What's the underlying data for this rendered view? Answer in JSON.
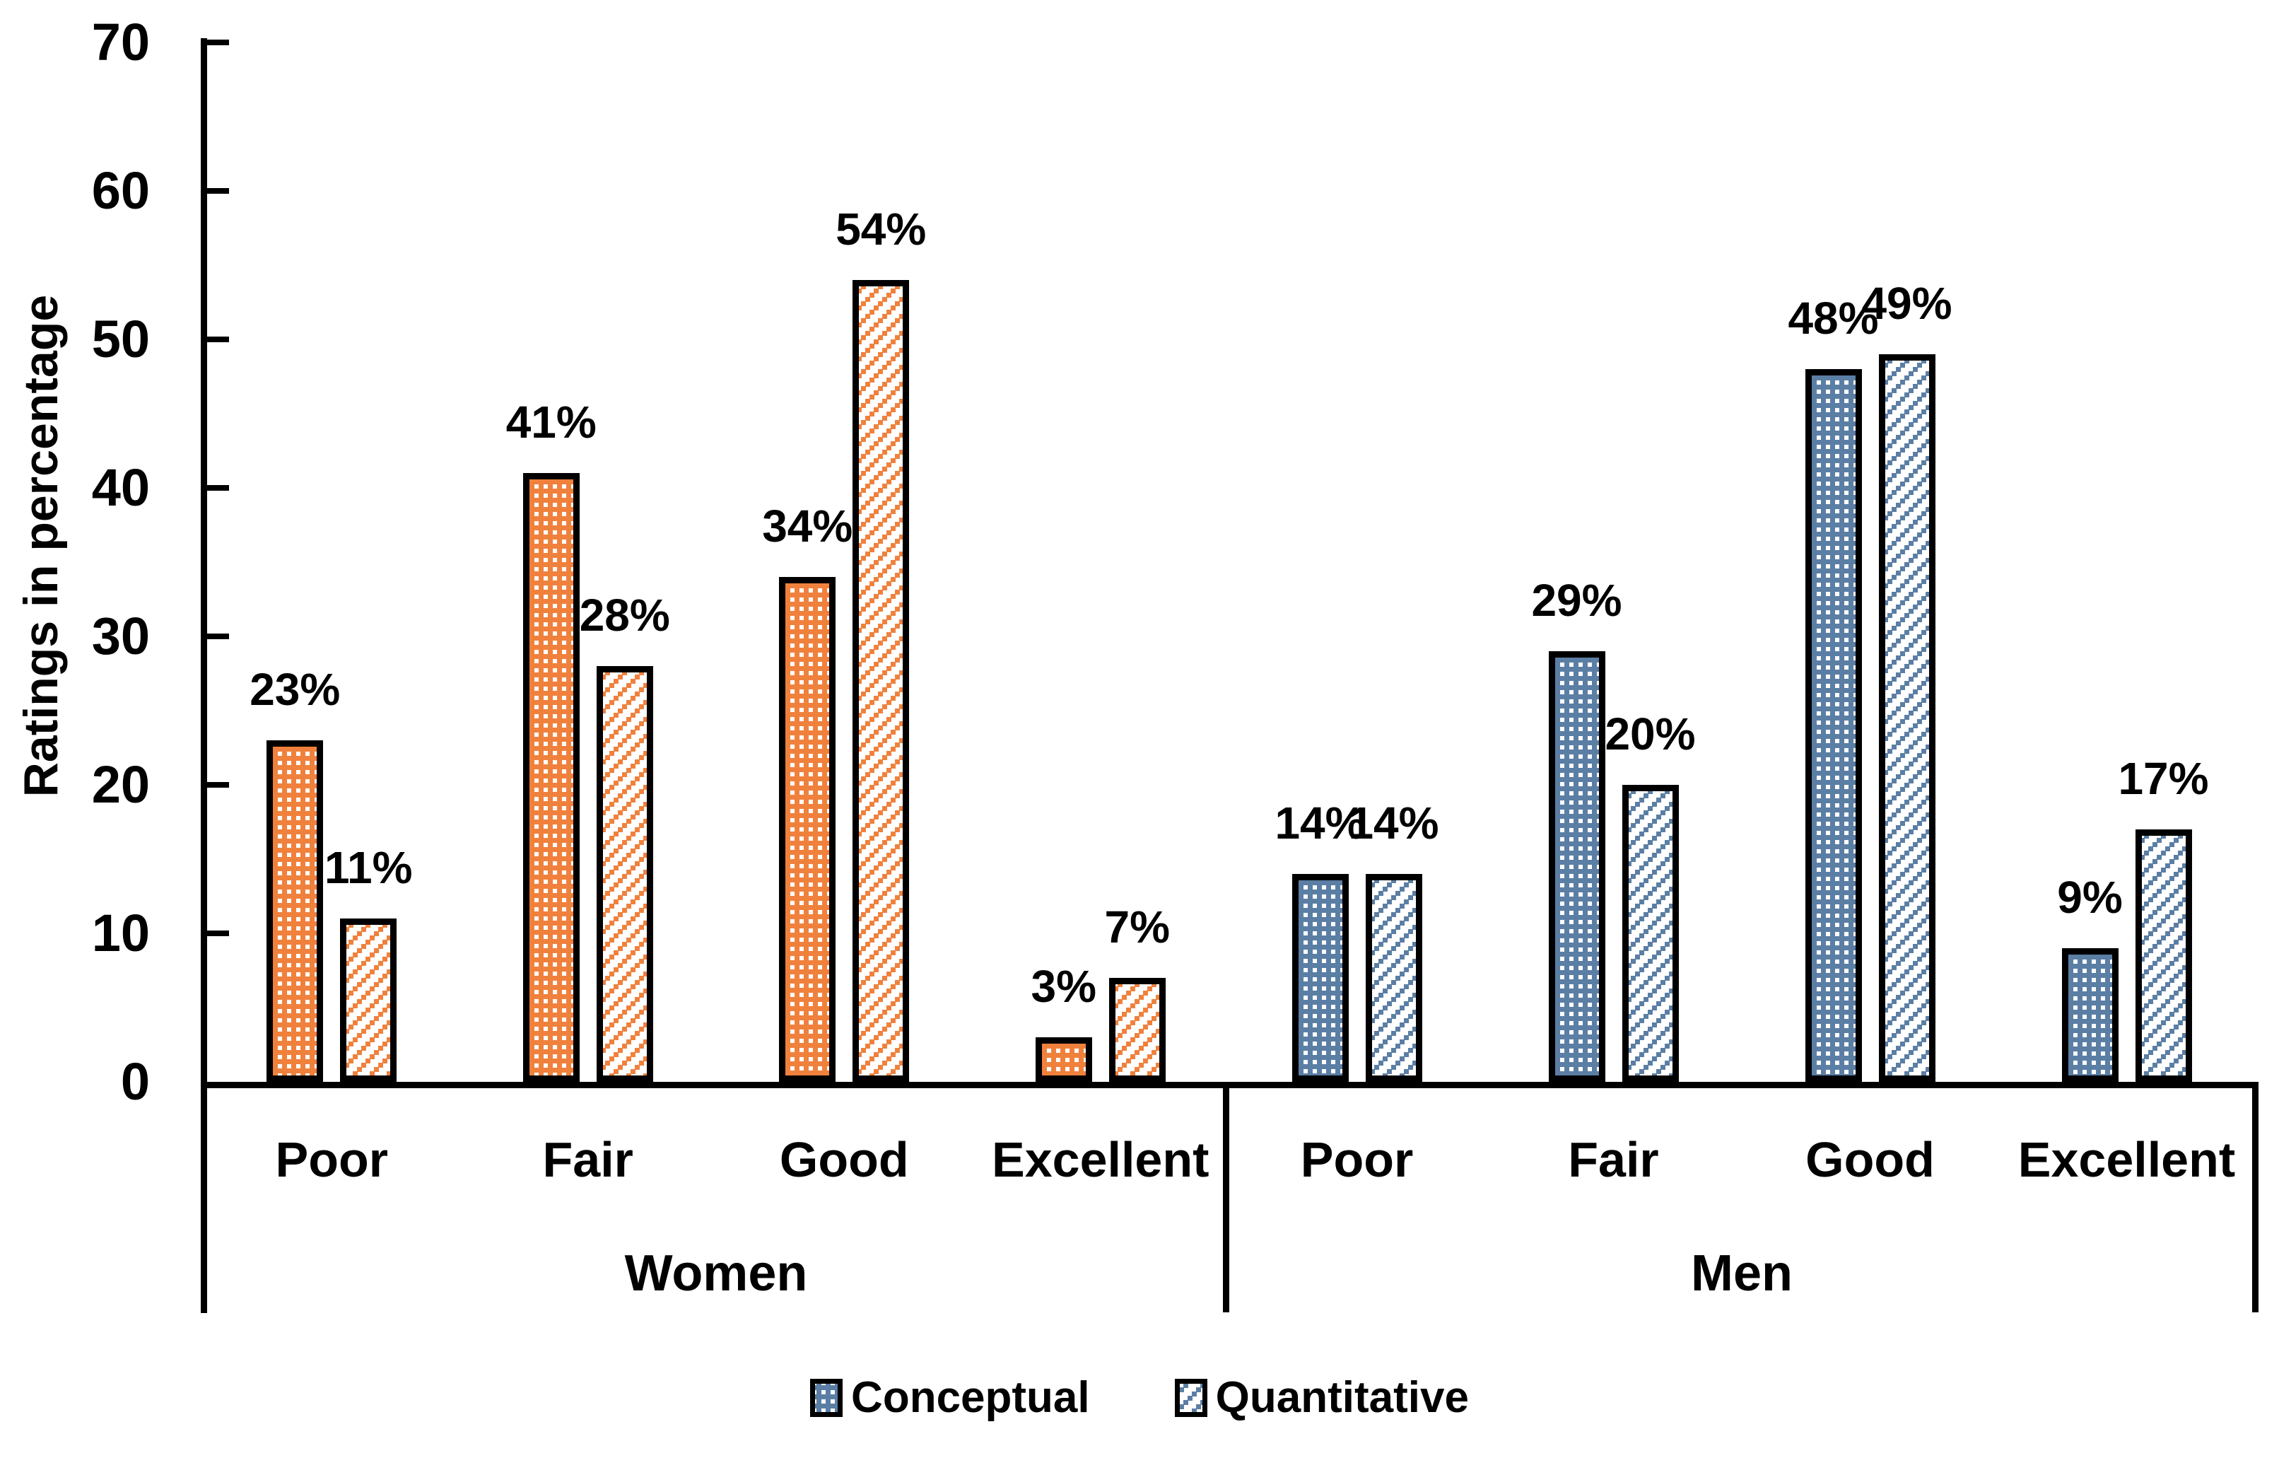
{
  "chart_data": {
    "type": "bar",
    "title": "",
    "ylabel": "Ratings in percentage",
    "ylim": [
      0,
      70
    ],
    "yticks": [
      0,
      10,
      20,
      30,
      40,
      50,
      60,
      70
    ],
    "value_suffix": "%",
    "grid": false,
    "legend_position": "bottom",
    "axis_color": "#000000",
    "categories": [
      "Poor",
      "Fair",
      "Good",
      "Excellent"
    ],
    "groups": [
      {
        "label": "Women",
        "color": "#F0813C",
        "series": [
          {
            "name": "Conceptual",
            "pattern": "dotted",
            "values": [
              23,
              41,
              34,
              3
            ]
          },
          {
            "name": "Quantitative",
            "pattern": "diagonal",
            "values": [
              11,
              28,
              54,
              7
            ]
          }
        ]
      },
      {
        "label": "Men",
        "color": "#5B7EA4",
        "series": [
          {
            "name": "Conceptual",
            "pattern": "dotted",
            "values": [
              14,
              29,
              48,
              9
            ]
          },
          {
            "name": "Quantitative",
            "pattern": "diagonal",
            "values": [
              14,
              20,
              49,
              17
            ]
          }
        ]
      }
    ],
    "legend": {
      "swatch_color": "#5B7EA4",
      "items": [
        {
          "label": "Conceptual",
          "pattern": "dotted"
        },
        {
          "label": "Quantitative",
          "pattern": "diagonal"
        }
      ]
    }
  }
}
